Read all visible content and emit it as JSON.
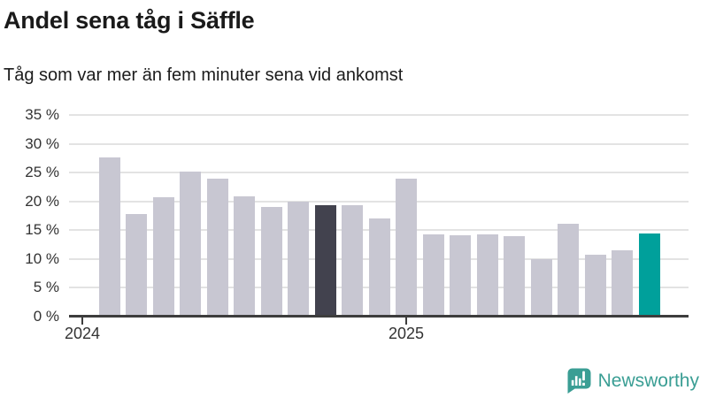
{
  "header": {
    "title": "Andel sena tåg i Säffle",
    "subtitle": "Tåg som var mer än fem minuter sena vid ankomst"
  },
  "chart_data": {
    "type": "bar",
    "title": "Andel sena tåg i Säffle",
    "subtitle": "Tåg som var mer än fem minuter sena vid ankomst",
    "unit": "%",
    "x": [
      "2024-02",
      "2024-03",
      "2024-04",
      "2024-05",
      "2024-06",
      "2024-07",
      "2024-08",
      "2024-09",
      "2024-10",
      "2024-11",
      "2024-12",
      "2025-01",
      "2025-02",
      "2025-03",
      "2025-04",
      "2025-05",
      "2025-06",
      "2025-07",
      "2025-08",
      "2025-09",
      "2025-10"
    ],
    "values": [
      27.6,
      17.8,
      20.7,
      25.2,
      23.9,
      20.9,
      19.0,
      20.0,
      19.3,
      19.3,
      17.0,
      23.9,
      14.3,
      14.1,
      14.3,
      14.0,
      10.0,
      16.1,
      10.7,
      11.5,
      14.4
    ],
    "ylim": [
      0,
      35
    ],
    "y_ticks": [
      0,
      5,
      10,
      15,
      20,
      25,
      30,
      35
    ],
    "y_tick_suffix": " %",
    "x_ticks": [
      {
        "label": "2024",
        "month": "2024-01"
      },
      {
        "label": "2025",
        "month": "2025-01"
      }
    ],
    "grid": true,
    "legend": "none",
    "highlight": {
      "dark_month": "2024-10",
      "accent_month": "2025-10"
    },
    "colors": {
      "bar_default": "#c8c7d2",
      "bar_dark": "#42424e",
      "bar_accent": "#00a09b",
      "axis": "#3d3d3d",
      "grid": "#e3e3e3",
      "tick_label": "#333333"
    }
  },
  "branding": {
    "name": "Newsworthy",
    "color": "#3a9e94"
  }
}
